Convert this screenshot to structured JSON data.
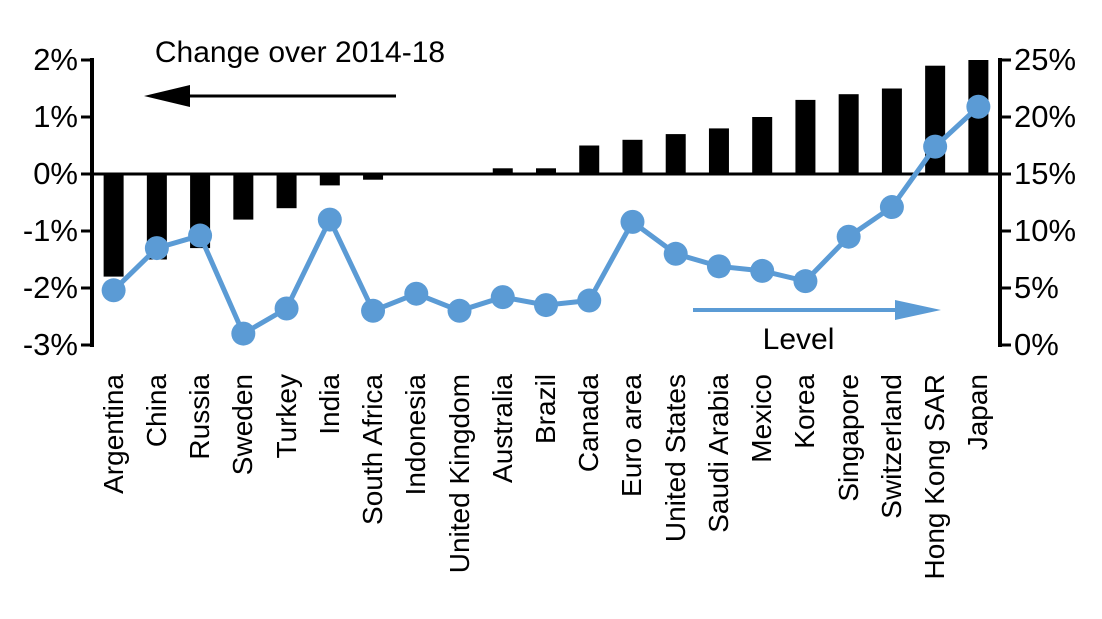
{
  "chart_data": {
    "type": "combo-bar-line",
    "title": "",
    "categories": [
      "Argentina",
      "China",
      "Russia",
      "Sweden",
      "Turkey",
      "India",
      "South Africa",
      "Indonesia",
      "United Kingdom",
      "Australia",
      "Brazil",
      "Canada",
      "Euro area",
      "United States",
      "Saudi Arabia",
      "Mexico",
      "Korea",
      "Singapore",
      "Switzerland",
      "Hong Kong SAR",
      "Japan"
    ],
    "series": [
      {
        "name": "Change over 2014-18",
        "type": "bar",
        "axis": "left",
        "color": "#000000",
        "values": [
          -1.8,
          -1.5,
          -1.3,
          -0.8,
          -0.6,
          -0.2,
          -0.1,
          0,
          0,
          0.1,
          0.1,
          0.5,
          0.6,
          0.7,
          0.8,
          1.0,
          1.3,
          1.4,
          1.5,
          1.9,
          2.0
        ]
      },
      {
        "name": "Level",
        "type": "line",
        "axis": "right",
        "color": "#5B9BD5",
        "values": [
          4.8,
          8.5,
          9.6,
          1.0,
          3.2,
          11.0,
          3.0,
          4.5,
          3.0,
          4.2,
          3.5,
          3.9,
          10.8,
          8.0,
          6.9,
          6.5,
          5.6,
          9.5,
          12.1,
          17.4,
          20.9
        ]
      }
    ],
    "left_axis": {
      "min": -3,
      "max": 2,
      "tick_values": [
        2,
        1,
        0,
        -1,
        -2,
        -3
      ],
      "ticks": [
        "2%",
        "1%",
        "0%",
        "-1%",
        "-2%",
        "-3%"
      ]
    },
    "right_axis": {
      "min": 0,
      "max": 25,
      "tick_values": [
        25,
        20,
        15,
        10,
        5,
        0
      ],
      "ticks": [
        "25%",
        "20%",
        "15%",
        "10%",
        "5%",
        "0%"
      ]
    },
    "annotations": {
      "bar_label": "Change over 2014-18",
      "bar_arrow_direction": "left",
      "line_label": "Level",
      "line_arrow_direction": "right"
    },
    "layout_hints": {
      "grid": "off",
      "zero_line": "on",
      "x_labels_rotated_90": true
    }
  }
}
